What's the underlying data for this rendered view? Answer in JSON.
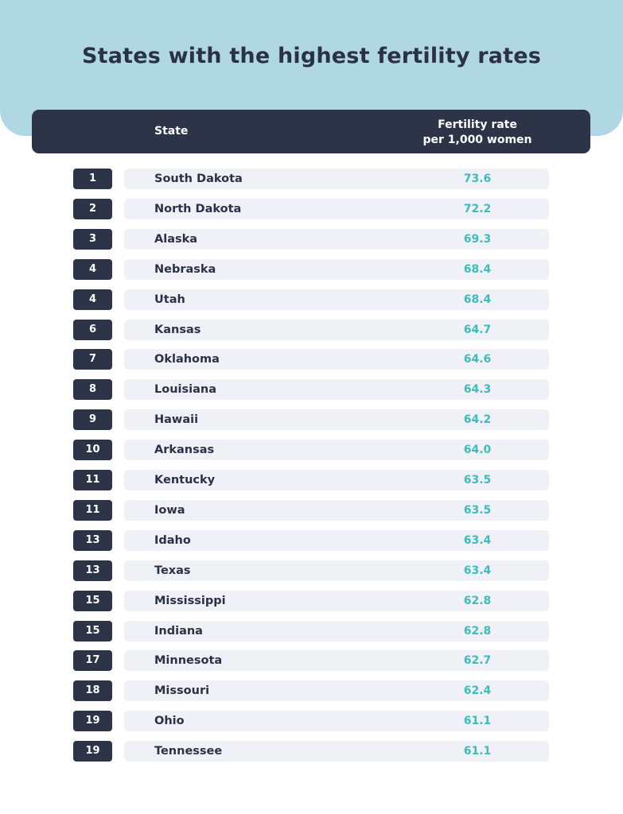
{
  "header": {
    "title": "States with the highest fertility rates"
  },
  "table": {
    "columns": {
      "state": "State",
      "rate": [
        "Fertility rate",
        "per 1,000 women"
      ]
    },
    "rows": [
      [
        "1",
        "South Dakota",
        "73.6"
      ],
      [
        "2",
        "North Dakota",
        "72.2"
      ],
      [
        "3",
        "Alaska",
        "69.3"
      ],
      [
        "4",
        "Nebraska",
        "68.4"
      ],
      [
        "4",
        "Utah",
        "68.4"
      ],
      [
        "6",
        "Kansas",
        "64.7"
      ],
      [
        "7",
        "Oklahoma",
        "64.6"
      ],
      [
        "8",
        "Louisiana",
        "64.3"
      ],
      [
        "9",
        "Hawaii",
        "64.2"
      ],
      [
        "10",
        "Arkansas",
        "64.0"
      ],
      [
        "11",
        "Kentucky",
        "63.5"
      ],
      [
        "11",
        "Iowa",
        "63.5"
      ],
      [
        "13",
        "Idaho",
        "63.4"
      ],
      [
        "13",
        "Texas",
        "63.4"
      ],
      [
        "15",
        "Mississippi",
        "62.8"
      ],
      [
        "15",
        "Indiana",
        "62.8"
      ],
      [
        "17",
        "Minnesota",
        "62.7"
      ],
      [
        "18",
        "Missouri",
        "62.4"
      ],
      [
        "19",
        "Ohio",
        "61.1"
      ],
      [
        "19",
        "Tennessee",
        "61.1"
      ]
    ]
  }
}
